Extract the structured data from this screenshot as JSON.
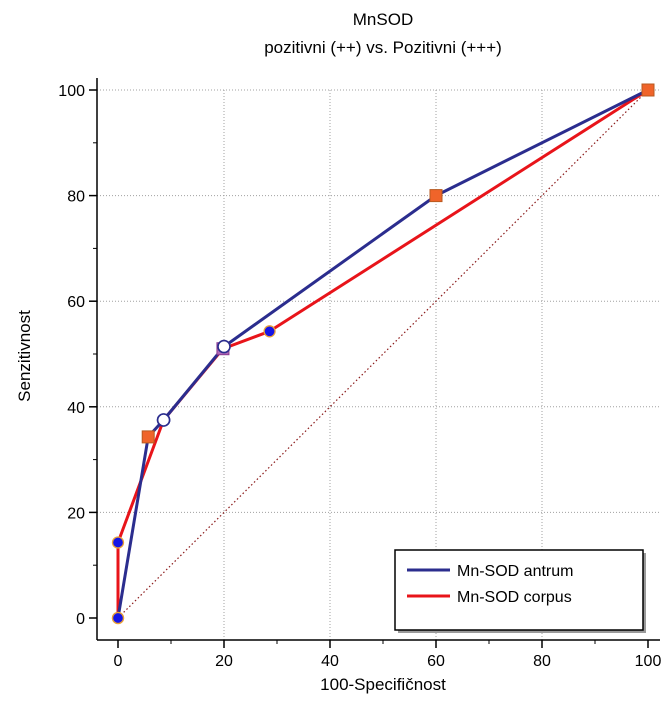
{
  "chart_data": {
    "type": "line",
    "title": "MnSOD",
    "subtitle": "pozitivni (++) vs. Pozitivni (+++)",
    "xlabel": "100-Specifičnost",
    "ylabel": "Senzitivnost",
    "xlim": [
      0,
      100
    ],
    "ylim": [
      0,
      100
    ],
    "xticks": [
      "0",
      "20",
      "40",
      "60",
      "80",
      "100"
    ],
    "yticks": [
      "0",
      "20",
      "40",
      "60",
      "80",
      "100"
    ],
    "grid": true,
    "legend_position": "bottom-right",
    "diagonal_reference": {
      "x": [
        0,
        100
      ],
      "y": [
        0,
        100
      ],
      "color": "#8b1a1a"
    },
    "series": [
      {
        "name": "Mn-SOD antrum",
        "color": "#2b2d8e",
        "x": [
          0,
          5.7,
          8.6,
          20.0,
          60.0,
          100
        ],
        "y": [
          0,
          34.3,
          37.5,
          51.4,
          80.0,
          100
        ],
        "markers": [
          "circle-blue",
          "square-orange",
          "circle-white",
          "circle-white",
          "square-orange",
          "square-orange"
        ]
      },
      {
        "name": "Mn-SOD corpus",
        "color": "#e8141a",
        "x": [
          0,
          0,
          8.6,
          19.8,
          28.6,
          100
        ],
        "y": [
          0,
          14.3,
          37.5,
          51.0,
          54.3,
          100
        ],
        "markers": [
          "circle-blue",
          "circle-blue",
          "circle-white",
          "square-purple",
          "circle-blue",
          "circle-blue"
        ]
      }
    ]
  }
}
